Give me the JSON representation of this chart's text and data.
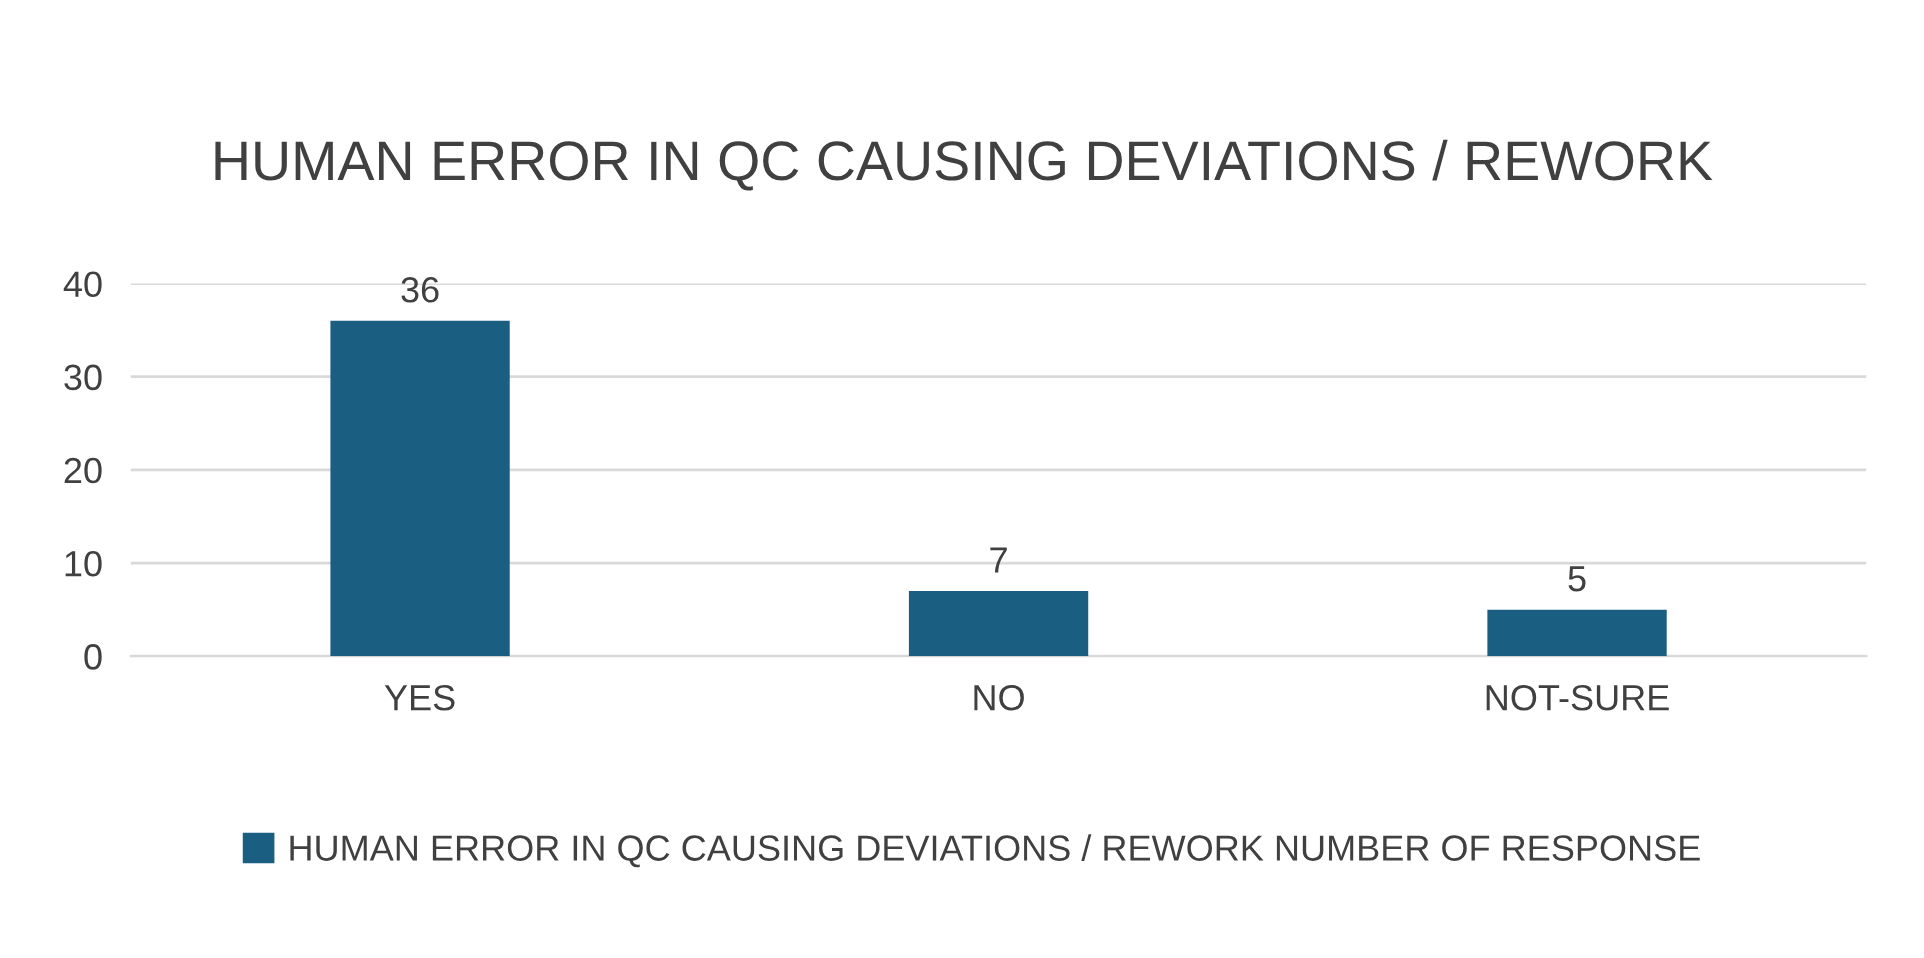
{
  "chart_data": {
    "type": "bar",
    "title": "HUMAN ERROR IN QC CAUSING DEVIATIONS / REWORK",
    "categories": [
      "YES",
      "NO",
      "NOT-SURE"
    ],
    "series": [
      {
        "name": "HUMAN ERROR IN QC CAUSING DEVIATIONS / REWORK NUMBER OF RESPONSE",
        "color": "#1a5f82",
        "values": [
          36,
          7,
          5
        ]
      }
    ],
    "ylim": [
      0,
      40
    ],
    "yticks": [
      0,
      10,
      20,
      30,
      40
    ],
    "grid": "y",
    "legend": "bottom",
    "data_labels": true
  }
}
